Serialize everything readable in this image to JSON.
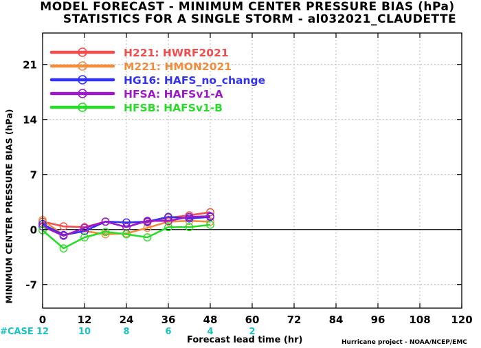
{
  "title": {
    "line1": "MODEL FORECAST - MINIMUM CENTER PRESSURE BIAS (hPa)",
    "line2": "STATISTICS FOR A SINGLE STORM - al032021_CLAUDETTE"
  },
  "ylabel": "MINIMUM CENTER PRESSURE BIAS (hPa)",
  "xlabel": "Forecast lead time (hr)",
  "credit": "Hurricane project - NOAA/NCEP/EMC",
  "case_label": "#CASE",
  "colors": {
    "case_text": "#19c3c3",
    "zero_line": "#000000",
    "grid": "#b4b4b4"
  },
  "chart_data": {
    "type": "line",
    "x": [
      0,
      6,
      12,
      18,
      24,
      30,
      36,
      42,
      48
    ],
    "xticks": [
      "0",
      "12",
      "24",
      "36",
      "48",
      "60",
      "72",
      "84",
      "96",
      "108",
      "120"
    ],
    "xtick_values": [
      0,
      12,
      24,
      36,
      48,
      60,
      72,
      84,
      96,
      108,
      120
    ],
    "xlim": [
      0,
      120
    ],
    "yticks": [
      "-7",
      "0",
      "7",
      "14",
      "21"
    ],
    "ytick_values": [
      -7,
      0,
      7,
      14,
      21
    ],
    "ylim": [
      -10,
      25
    ],
    "grid": true,
    "legend_position": "top-left",
    "case_counts": {
      "x": [
        0,
        12,
        24,
        36,
        48,
        60
      ],
      "values": [
        "12",
        "10",
        "8",
        "6",
        "4",
        "2"
      ]
    },
    "series": [
      {
        "name": "H221: HWRF2021",
        "color": "#f24d4d",
        "values": [
          1.0,
          0.4,
          0.3,
          1.0,
          0.9,
          0.9,
          1.5,
          1.8,
          2.2
        ]
      },
      {
        "name": "M221: HMON2021",
        "color": "#f08c3c",
        "values": [
          1.2,
          -0.7,
          -0.2,
          -0.6,
          -0.5,
          0.2,
          1.0,
          1.1,
          1.0
        ]
      },
      {
        "name": "HG16: HAFS_no_change",
        "color": "#3232f0",
        "values": [
          0.7,
          -0.7,
          -0.2,
          1.0,
          0.9,
          1.0,
          1.6,
          1.4,
          1.6
        ]
      },
      {
        "name": "HFSA: HAFSv1-A",
        "color": "#9b19c8",
        "values": [
          0.4,
          -0.8,
          0.2,
          1.0,
          0.3,
          1.1,
          1.1,
          1.6,
          1.7
        ]
      },
      {
        "name": "HFSB: HAFSv1-B",
        "color": "#28dc28",
        "values": [
          -0.1,
          -2.4,
          -1.0,
          -0.3,
          -0.6,
          -1.0,
          0.3,
          0.3,
          0.6
        ]
      }
    ]
  }
}
